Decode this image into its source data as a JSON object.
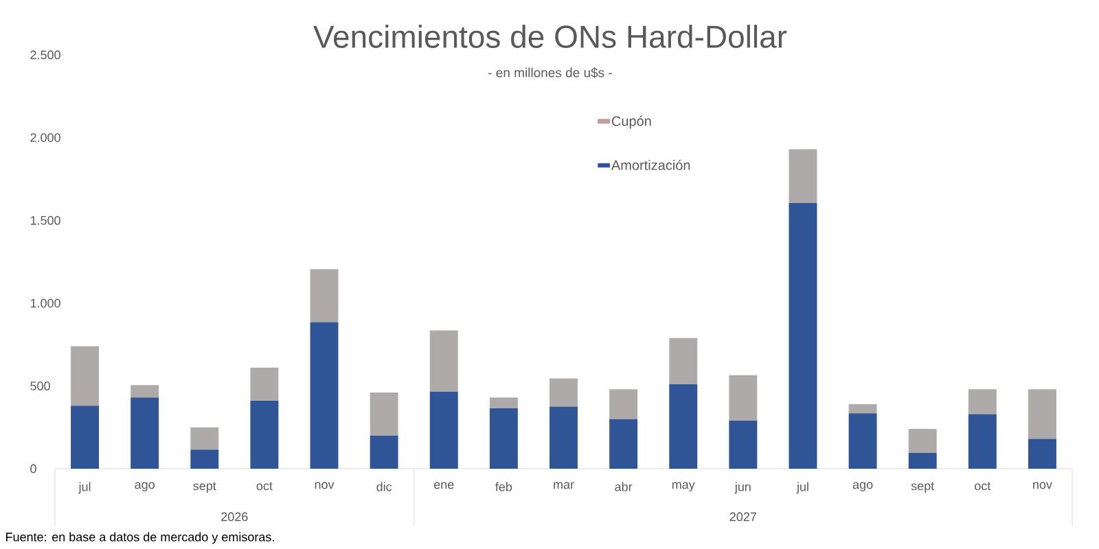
{
  "chart_data": {
    "type": "bar",
    "stacked": true,
    "title": "Vencimientos de ONs Hard-Dollar",
    "subtitle": "- en millones de u$s -",
    "categories": [
      "jul",
      "ago",
      "sept",
      "oct",
      "nov",
      "dic",
      "ene",
      "feb",
      "mar",
      "abr",
      "may",
      "jun",
      "jul",
      "ago",
      "sept",
      "oct",
      "nov"
    ],
    "series": [
      {
        "name": "Amortización",
        "color": "#2f5597",
        "values": [
          380,
          430,
          115,
          410,
          885,
          200,
          465,
          365,
          375,
          300,
          510,
          290,
          1605,
          335,
          95,
          330,
          180
        ]
      },
      {
        "name": "Cupón",
        "color": "#aeaaaa",
        "values": [
          360,
          75,
          135,
          200,
          320,
          260,
          370,
          65,
          170,
          180,
          280,
          275,
          325,
          55,
          145,
          150,
          300
        ]
      }
    ],
    "ylim": [
      0,
      2500
    ],
    "yticks": [
      0,
      500,
      {
        "value": 1000,
        "label": "1.000"
      },
      {
        "value": 1500,
        "label": "1.500"
      },
      {
        "value": 2000,
        "label": "2.000"
      },
      {
        "value": 2500,
        "label": "2.500"
      }
    ],
    "legend": "top",
    "annotations": [
      "2026",
      "2027",
      "Fuente: en base a datos de mercado y emisoras."
    ]
  }
}
